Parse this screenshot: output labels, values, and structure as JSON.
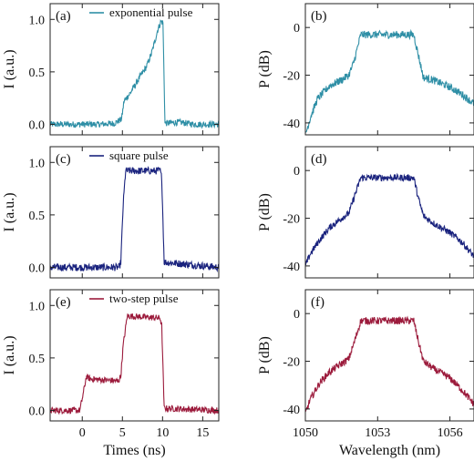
{
  "chart_data": [
    {
      "panel": "(a)",
      "type": "line",
      "ylabel": "I (a.u.)",
      "xlabel": "",
      "xlim": [
        -4,
        17
      ],
      "ylim": [
        -0.1,
        1.15
      ],
      "xticks": [],
      "yticks": [
        "0.0",
        "0.5",
        "1.0"
      ],
      "ytick_values": [
        0,
        0.5,
        1.0
      ],
      "series": [
        {
          "name": "exponential pulse",
          "color": "#2f8fa6",
          "x": [
            -4,
            0,
            2,
            4,
            4.9,
            5.2,
            6,
            7,
            8,
            8.6,
            9,
            9.4,
            9.8,
            10.05,
            10.3,
            12,
            14,
            17
          ],
          "y": [
            0,
            0,
            0,
            0.01,
            0.05,
            0.22,
            0.3,
            0.43,
            0.55,
            0.67,
            0.78,
            0.9,
            0.98,
            0.97,
            0.01,
            0.02,
            0,
            0
          ],
          "noise": 0.03
        }
      ]
    },
    {
      "panel": "(c)",
      "type": "line",
      "ylabel": "I (a.u.)",
      "xlabel": "",
      "xlim": [
        -4,
        17
      ],
      "ylim": [
        -0.1,
        1.15
      ],
      "xticks": [],
      "yticks": [
        "0.0",
        "0.5",
        "1.0"
      ],
      "ytick_values": [
        0,
        0.5,
        1.0
      ],
      "series": [
        {
          "name": "square pulse",
          "color": "#1a237e",
          "x": [
            -4,
            4.6,
            4.8,
            5.1,
            5.4,
            9.7,
            9.9,
            10.2,
            17
          ],
          "y": [
            0,
            0,
            0.05,
            0.6,
            0.92,
            0.92,
            0.85,
            0.05,
            0
          ],
          "noise": 0.035
        }
      ]
    },
    {
      "panel": "(e)",
      "type": "line",
      "ylabel": "I (a.u.)",
      "xlabel": "Times (ns)",
      "xlim": [
        -4,
        17
      ],
      "ylim": [
        -0.1,
        1.15
      ],
      "xticks": [
        "0",
        "5",
        "10",
        "15"
      ],
      "xtick_values": [
        0,
        5,
        10,
        15
      ],
      "yticks": [
        "0.0",
        "0.5",
        "1.0"
      ],
      "ytick_values": [
        0,
        0.5,
        1.0
      ],
      "series": [
        {
          "name": "two-step pulse",
          "color": "#9c1b3c",
          "x": [
            -4,
            -0.3,
            0.1,
            0.5,
            1,
            4.5,
            4.8,
            5.1,
            5.6,
            9.7,
            9.9,
            10.2,
            17
          ],
          "y": [
            0,
            0,
            0.15,
            0.32,
            0.3,
            0.28,
            0.33,
            0.62,
            0.9,
            0.88,
            0.8,
            0.02,
            0
          ],
          "noise": 0.03
        }
      ]
    },
    {
      "panel": "(b)",
      "type": "line",
      "ylabel": "P (dB)",
      "xlabel": "",
      "xlim": [
        1050,
        1057
      ],
      "ylim": [
        -45,
        10
      ],
      "xticks": [],
      "yticks": [
        "0",
        "-20",
        "-40"
      ],
      "ytick_values": [
        0,
        -20,
        -40
      ],
      "series": [
        {
          "name": "",
          "color": "#2f8fa6",
          "x": [
            1050,
            1050.2,
            1050.5,
            1051,
            1051.5,
            1051.8,
            1052,
            1052.3,
            1054.5,
            1054.7,
            1054.9,
            1055.3,
            1056,
            1056.5,
            1057
          ],
          "y": [
            -45,
            -38,
            -30,
            -24.5,
            -22,
            -20,
            -15,
            -3,
            -3,
            -12,
            -21,
            -22,
            -25,
            -28,
            -32
          ],
          "noise": 1.6
        }
      ]
    },
    {
      "panel": "(d)",
      "type": "line",
      "ylabel": "P (dB)",
      "xlabel": "",
      "xlim": [
        1050,
        1057
      ],
      "ylim": [
        -45,
        10
      ],
      "xticks": [],
      "yticks": [
        "0",
        "-20",
        "-40"
      ],
      "ytick_values": [
        0,
        -20,
        -40
      ],
      "series": [
        {
          "name": "",
          "color": "#1a237e",
          "x": [
            1050,
            1050.2,
            1050.6,
            1051,
            1051.5,
            1051.8,
            1052,
            1052.3,
            1054.5,
            1054.7,
            1054.9,
            1055.3,
            1056,
            1056.5,
            1057
          ],
          "y": [
            -40,
            -35,
            -29,
            -24,
            -20,
            -18,
            -12,
            -3,
            -3,
            -12,
            -19,
            -22,
            -26,
            -30,
            -36
          ],
          "noise": 1.4
        }
      ]
    },
    {
      "panel": "(f)",
      "type": "line",
      "ylabel": "P (dB)",
      "xlabel": "Wavelength (nm)",
      "xlim": [
        1050,
        1057
      ],
      "ylim": [
        -45,
        10
      ],
      "xticks": [
        "1050",
        "1053",
        "1056"
      ],
      "xtick_values": [
        1050,
        1053,
        1056
      ],
      "yticks": [
        "0",
        "-20",
        "-40"
      ],
      "ytick_values": [
        0,
        -20,
        -40
      ],
      "series": [
        {
          "name": "",
          "color": "#9c1b3c",
          "x": [
            1050,
            1050.2,
            1050.6,
            1051,
            1051.5,
            1051.8,
            1052,
            1052.3,
            1054.5,
            1054.7,
            1054.9,
            1055.3,
            1056,
            1056.5,
            1057
          ],
          "y": [
            -42,
            -36,
            -29,
            -24.5,
            -21,
            -19,
            -13,
            -3,
            -3,
            -12,
            -20,
            -23,
            -27,
            -32,
            -38
          ],
          "noise": 1.5
        }
      ]
    }
  ]
}
